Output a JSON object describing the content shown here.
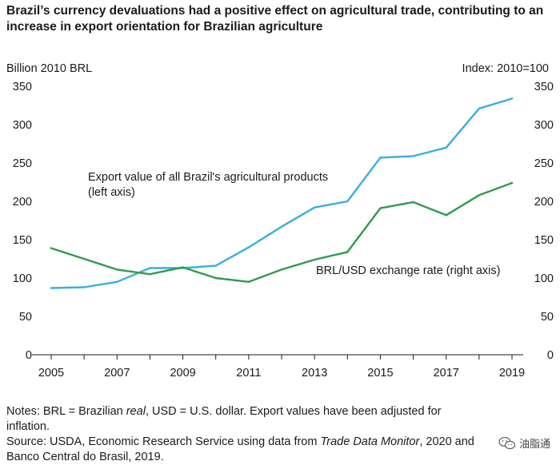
{
  "title": "Brazil’s currency devaluations had a positive effect on agricultural trade, contributing to an increase in export orientation for Brazilian agriculture",
  "left_axis_unit": "Billion 2010 BRL",
  "right_axis_unit": "Index: 2010=100",
  "notes": {
    "line1_prefix": "Notes: BRL = Brazilian ",
    "line1_italic": "real",
    "line1_suffix": ", USD = U.S. dollar. Export values have been adjusted for inflation.",
    "line2_prefix": "Source: USDA, Economic Research Service using data from ",
    "line2_italic": "Trade Data Monitor",
    "line2_suffix": ", 2020 and",
    "line3": "Banco Central do Brasil, 2019."
  },
  "watermark": {
    "text": "油脂通",
    "icon": "wechat-icon"
  },
  "chart_data": {
    "type": "line",
    "x": [
      2005,
      2006,
      2007,
      2008,
      2009,
      2010,
      2011,
      2012,
      2013,
      2014,
      2015,
      2016,
      2017,
      2018,
      2019
    ],
    "x_tick_labels": [
      "2005",
      "2007",
      "2009",
      "2011",
      "2013",
      "2015",
      "2017",
      "2019"
    ],
    "xlim": [
      2005,
      2019
    ],
    "ylim": [
      0,
      350
    ],
    "y_tick_labels": [
      "0",
      "50",
      "100",
      "150",
      "200",
      "250",
      "300",
      "350"
    ],
    "series": [
      {
        "name": "Export value of all Brazil's agricultural products",
        "label_line1": "Export value of all Brazil's agricultural products",
        "label_line2": "(left axis)",
        "axis": "left",
        "color": "#3aaee0",
        "values": [
          87,
          88,
          95,
          113,
          113,
          116,
          140,
          167,
          192,
          200,
          257,
          259,
          270,
          321,
          334
        ]
      },
      {
        "name": "BRL/USD exchange rate",
        "label_line1": "BRL/USD exchange rate (right axis)",
        "axis": "right",
        "color": "#2e9c4e",
        "values": [
          139,
          125,
          111,
          105,
          114,
          100,
          95,
          111,
          124,
          134,
          191,
          199,
          182,
          208,
          224
        ]
      }
    ],
    "grid": false
  }
}
